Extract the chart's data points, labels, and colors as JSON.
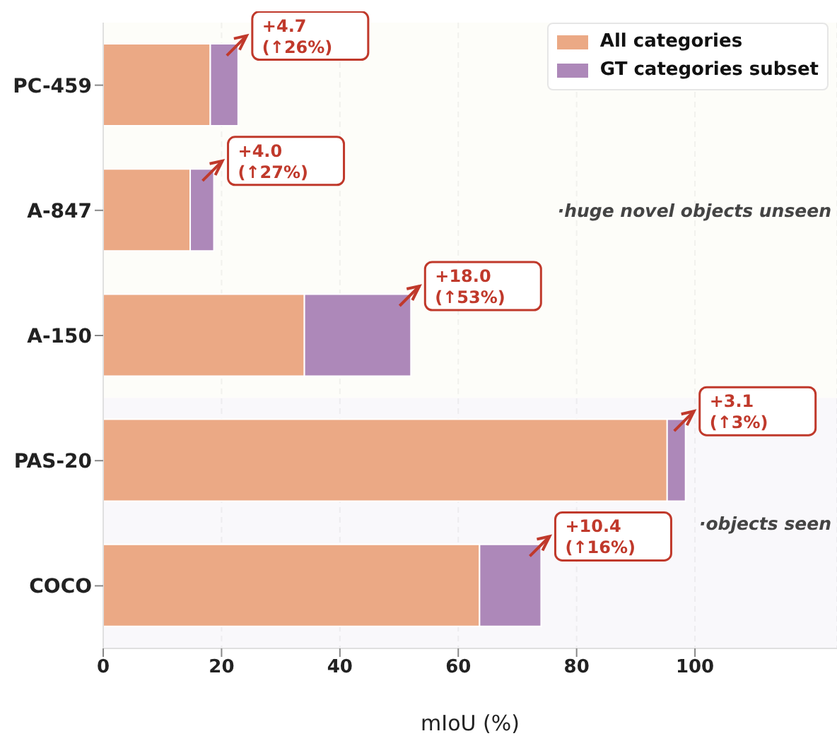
{
  "chart_data": {
    "type": "bar",
    "orientation": "horizontal",
    "stacked": true,
    "xlabel": "mIoU (%)",
    "categories": [
      "PC-459",
      "A-847",
      "A-150",
      "PAS-20",
      "COCO"
    ],
    "series": [
      {
        "name": "All categories",
        "color": "#eba985",
        "values": [
          18.1,
          14.7,
          34.0,
          95.3,
          63.6
        ]
      },
      {
        "name": "GT categories subset",
        "color": "#ad88b9",
        "values": [
          4.7,
          4.0,
          18.0,
          3.1,
          10.4
        ]
      }
    ],
    "xlim": [
      0,
      124
    ],
    "xticks": [
      0,
      20,
      40,
      60,
      80,
      100
    ],
    "grid": "x",
    "legend": "top right",
    "bands": [
      {
        "axis": "y",
        "from": "PC-459",
        "to": "A-150",
        "label": "·huge novel objects unseen",
        "color": "#fcfcf6"
      },
      {
        "axis": "y",
        "from": "PAS-20",
        "to": "COCO",
        "label": "·objects seen",
        "color": "#f7f5fa"
      }
    ],
    "annotations": [
      {
        "text": "+4.7\n(↑26%)",
        "x": 22.8,
        "y": "PC-459"
      },
      {
        "text": "+4.0\n(↑27%)",
        "x": 18.7,
        "y": "A-847"
      },
      {
        "text": "+18.0\n(↑53%)",
        "x": 52.0,
        "y": "A-150"
      },
      {
        "text": "+3.1\n(↑3%)",
        "x": 98.4,
        "y": "PAS-20"
      },
      {
        "text": "+10.4\n(↑16%)",
        "x": 74.0,
        "y": "COCO"
      }
    ]
  }
}
